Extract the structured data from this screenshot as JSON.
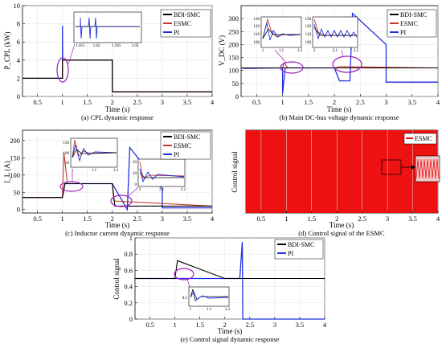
{
  "colors": {
    "bdi_smc": "#000000",
    "esmc": "#c0392b",
    "pi": "#1f2fe0",
    "highlight": "#a020c0",
    "esmc_fill": "#ee1111"
  },
  "chart_data": [
    {
      "panel": "a",
      "type": "line",
      "caption": "(a) CPL dynamic response",
      "ylabel": "P_CPL (kW)",
      "xlabel": "Time (s)",
      "xlim": [
        0.2,
        4
      ],
      "ylim": [
        0,
        10
      ],
      "xticks": [
        "0.5",
        "1",
        "1.5",
        "2",
        "2.5",
        "3",
        "3.5",
        "4"
      ],
      "yticks": [
        "0",
        "2",
        "4",
        "6",
        "8",
        "10"
      ],
      "legend": [
        "BDI-SMC",
        "ESMC",
        "PI"
      ],
      "series": [
        {
          "name": "BDI-SMC",
          "x": [
            0.2,
            1,
            1,
            2,
            2,
            4
          ],
          "y": [
            2,
            2,
            4,
            4,
            0.5,
            0.5
          ]
        },
        {
          "name": "ESMC",
          "x": [
            0.2,
            1,
            1,
            2,
            2,
            4
          ],
          "y": [
            2,
            2,
            4,
            4,
            0.5,
            0.5
          ]
        },
        {
          "name": "PI",
          "x": [
            0.2,
            1,
            1,
            1.005,
            1.01,
            1.02,
            2,
            2,
            4
          ],
          "y": [
            2,
            2,
            7.8,
            4,
            4,
            4,
            4,
            0.5,
            0.5
          ]
        }
      ],
      "inset": {
        "xticks": [
          "1.015",
          "1.02",
          "1.025",
          "1.03"
        ]
      }
    },
    {
      "panel": "b",
      "type": "line",
      "caption": "(b) Main DC-bus voltage dynamic response",
      "ylabel": "V_DC (V)",
      "xlabel": "Time (s)",
      "xlim": [
        0.2,
        4
      ],
      "ylim": [
        0,
        350
      ],
      "xticks": [
        "0.5",
        "1",
        "1.5",
        "2",
        "2.5",
        "3",
        "3.5",
        "4"
      ],
      "yticks": [
        "0",
        "50",
        "100",
        "150",
        "200",
        "250",
        "300"
      ],
      "legend": [
        "BDI-SMC",
        "ESMC",
        "PI"
      ],
      "series": [
        {
          "name": "BDI-SMC",
          "x": [
            0.2,
            1,
            1.1,
            2,
            2.1,
            4
          ],
          "y": [
            110,
            110,
            110,
            110,
            110,
            110
          ]
        },
        {
          "name": "ESMC",
          "x": [
            0.2,
            1,
            1.03,
            1.1,
            2,
            2.1,
            4
          ],
          "y": [
            110,
            110,
            130,
            110,
            110,
            115,
            110
          ]
        },
        {
          "name": "PI",
          "x": [
            0.2,
            0.3,
            1,
            1,
            1.05,
            1.15,
            2,
            2.1,
            2.3,
            2.35,
            3,
            3,
            4
          ],
          "y": [
            110,
            108,
            110,
            10,
            110,
            110,
            110,
            60,
            60,
            320,
            200,
            55,
            55
          ]
        }
      ],
      "insets": [
        {
          "xticks": [
            "1",
            "1.1",
            "1.2"
          ],
          "yticks": [
            "100",
            "110",
            "120",
            "130"
          ]
        },
        {
          "xticks": [
            "2",
            "2.1",
            "2.2"
          ],
          "yticks": [
            "100",
            "110",
            "120",
            "130"
          ]
        }
      ]
    },
    {
      "panel": "c",
      "type": "line",
      "caption": "(c) Inductor current dynamic response",
      "ylabel": "I_L (A)",
      "xlabel": "Time (s)",
      "xlim": [
        0.2,
        4
      ],
      "ylim": [
        -10,
        230
      ],
      "xticks": [
        "0.5",
        "1",
        "1.5",
        "2",
        "2.5",
        "3",
        "3.5",
        "4"
      ],
      "yticks": [
        "0",
        "50",
        "100",
        "150",
        "200"
      ],
      "legend": [
        "BDI-SMC",
        "ESMC",
        "PI"
      ],
      "series": [
        {
          "name": "BDI-SMC",
          "x": [
            0.2,
            1,
            1.05,
            2,
            2.05,
            4
          ],
          "y": [
            35,
            35,
            75,
            75,
            10,
            10
          ]
        },
        {
          "name": "ESMC",
          "x": [
            0.2,
            1,
            1.03,
            1.1,
            2,
            2.03,
            4
          ],
          "y": [
            35,
            35,
            165,
            75,
            75,
            25,
            10
          ]
        },
        {
          "name": "PI",
          "x": [
            0.2,
            1,
            1.05,
            2,
            2.3,
            2.35,
            3,
            3,
            4
          ],
          "y": [
            35,
            35,
            75,
            75,
            0,
            180,
            60,
            5,
            5
          ]
        }
      ],
      "insets": [
        {
          "xticks": [
            "1",
            "1.1",
            "1.2"
          ],
          "yticks": [
            "50",
            "100",
            "150"
          ]
        },
        {
          "xticks": [
            "2",
            "2.1",
            "2.2"
          ],
          "yticks": [
            "0",
            "10",
            "20"
          ]
        }
      ]
    },
    {
      "panel": "d",
      "type": "area",
      "caption": "(d) Control signal of the ESMC",
      "ylabel": "Control signal",
      "xlabel": "Time (s)",
      "xlim": [
        0.2,
        4
      ],
      "ylim": [
        0,
        1
      ],
      "xticks": [
        "0.5",
        "1",
        "1.5",
        "2",
        "2.5",
        "3",
        "3.5",
        "4"
      ],
      "yticks": [],
      "legend": [
        "ESMC"
      ],
      "series": [
        {
          "name": "ESMC",
          "x": [
            0.2,
            4
          ],
          "y": [
            1,
            1
          ]
        }
      ]
    },
    {
      "panel": "e",
      "type": "line",
      "caption": "(e) Control signal dynamic response",
      "ylabel": "Control signal",
      "xlabel": "Time (s)",
      "xlim": [
        0.2,
        4
      ],
      "ylim": [
        0,
        1
      ],
      "xticks": [
        "0.5",
        "1",
        "1.5",
        "2",
        "2.5",
        "3",
        "3.5",
        "4"
      ],
      "yticks": [
        "0",
        "0.2",
        "0.4",
        "0.6",
        "0.8",
        "1"
      ],
      "legend": [
        "BDI-SMC",
        "PI"
      ],
      "series": [
        {
          "name": "BDI-SMC",
          "x": [
            0.2,
            1,
            1.05,
            2,
            4
          ],
          "y": [
            0.5,
            0.5,
            0.72,
            0.5,
            0.5
          ]
        },
        {
          "name": "PI",
          "x": [
            0.2,
            1,
            2,
            2.3,
            2.35,
            2.36,
            2.4,
            4
          ],
          "y": [
            0.5,
            0.5,
            0.5,
            0.5,
            0.95,
            0,
            0,
            0
          ]
        }
      ],
      "inset": {
        "xticks": [
          "1",
          "1.1",
          "1.2"
        ],
        "yticks": [
          "0.5"
        ]
      }
    }
  ]
}
